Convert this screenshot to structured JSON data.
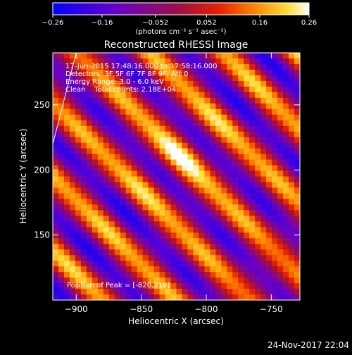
{
  "colorbar": {
    "min": -0.26,
    "max": 0.26,
    "tick_labels": [
      "-0.26",
      "-0.16",
      "-0.052",
      "0.052",
      "0.16",
      "0.26"
    ],
    "unit_label": "(photons cm⁻² s⁻¹ asec⁻²)",
    "colormap": "blue-purple-red-orange-yellow-white"
  },
  "annotations": {
    "time_range": "17-Jun-2015 17:48:16.000 to 17:58:16.000",
    "detectors": "Detectors: 3F 5F 6F 7F 8F 9F, Att 0",
    "energy_range": "Energy Range: 3.0 - 6.0 keV",
    "clean": "Clean    Total counts: 2.18E+04",
    "peak": "Position of Peak = [-820,210]"
  },
  "footer": {
    "timestamp": "24-Nov-2017 22:04"
  },
  "chart_data": {
    "type": "heatmap",
    "title": "Reconstructed RHESSI Image",
    "xlabel": "Heliocentric X (arcsec)",
    "ylabel": "Heliocentric Y (arcsec)",
    "xlim": [
      -918,
      -728
    ],
    "ylim": [
      100,
      290
    ],
    "x_ticks": [
      -900,
      -850,
      -800,
      -750
    ],
    "y_ticks": [
      150,
      200,
      250
    ],
    "x_tick_labels": [
      "−900",
      "−850",
      "−800",
      "−750"
    ],
    "y_tick_labels": [
      "150",
      "200",
      "250"
    ],
    "peak": {
      "x": -820,
      "y": 210,
      "value": 0.26
    },
    "fringe_pattern": {
      "description_values": "oscillating diagonal stripes of intensity in colorbar units",
      "range": [
        -0.26,
        0.26
      ]
    },
    "limb_arc": {
      "x_start": -918,
      "y_start": 220,
      "x_end": -900,
      "y_end": 290
    }
  }
}
